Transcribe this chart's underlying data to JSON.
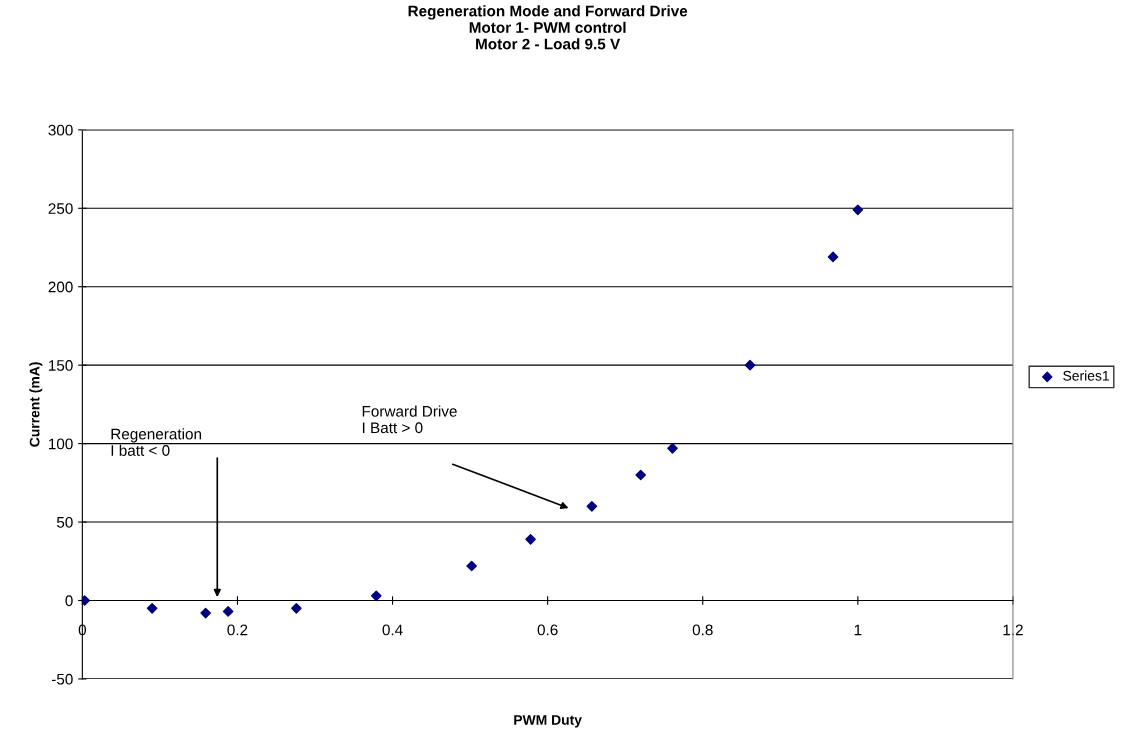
{
  "chart_data": {
    "type": "scatter",
    "title": "Regeneration Mode and Forward Drive\nMotor 1- PWM control\nMotor 2 - Load 9.5 V",
    "xlabel": "PWM Duty",
    "ylabel": "Current (mA)",
    "x": [
      0.003,
      0.09,
      0.159,
      0.188,
      0.276,
      0.379,
      0.502,
      0.578,
      0.657,
      0.72,
      0.761,
      0.861,
      0.968,
      1.0
    ],
    "series": [
      {
        "name": "Series1",
        "color": "#000080",
        "values": [
          0,
          -5,
          -8,
          -7,
          -5,
          3,
          22,
          39,
          60,
          80,
          97,
          150,
          219,
          249
        ]
      }
    ],
    "xlim": [
      0,
      1.2
    ],
    "xticks": [
      0,
      0.2,
      0.4,
      0.6,
      0.8,
      1,
      1.2
    ],
    "ylim": [
      -50,
      300
    ],
    "yticks": [
      -50,
      0,
      50,
      100,
      150,
      200,
      250,
      300
    ],
    "grid": "y",
    "legend": "right",
    "marker": "diamond",
    "annotations": [
      "Regeneration\nI batt < 0",
      "Forward Drive\nI Batt > 0"
    ]
  }
}
